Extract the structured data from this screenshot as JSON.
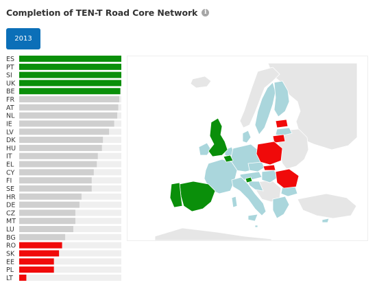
{
  "header": {
    "title": "Completion of TEN-T Road Core Network",
    "info_icon": "info-icon",
    "info_glyph": "i"
  },
  "year_selector": {
    "label": "2013"
  },
  "colors": {
    "complete": "#0a8f0a",
    "intermediate": "#cfcfcf",
    "low": "#f00a0a",
    "track": "#efefef",
    "map_intermediate": "#aad6dc",
    "map_nodata": "#e6e6e6"
  },
  "chart_data": {
    "type": "bar",
    "orientation": "horizontal",
    "categories": [
      "ES",
      "PT",
      "SI",
      "UK",
      "BE",
      "FR",
      "AT",
      "NL",
      "IE",
      "LV",
      "DK",
      "HU",
      "IT",
      "EL",
      "CY",
      "FI",
      "SE",
      "HR",
      "DE",
      "CZ",
      "MT",
      "LU",
      "BG",
      "RO",
      "SK",
      "EE",
      "PL",
      "LT"
    ],
    "values": [
      100,
      100,
      100,
      100,
      99,
      98,
      97,
      96,
      93,
      88,
      82,
      81,
      77,
      76,
      73,
      71,
      71,
      61,
      59,
      55,
      55,
      53,
      45,
      42,
      39,
      34,
      34,
      7
    ],
    "status": [
      "complete",
      "complete",
      "complete",
      "complete",
      "complete",
      "intermediate",
      "intermediate",
      "intermediate",
      "intermediate",
      "intermediate",
      "intermediate",
      "intermediate",
      "intermediate",
      "intermediate",
      "intermediate",
      "intermediate",
      "intermediate",
      "intermediate",
      "intermediate",
      "intermediate",
      "intermediate",
      "intermediate",
      "intermediate",
      "low",
      "low",
      "low",
      "low",
      "low"
    ],
    "xlim": [
      0,
      100
    ],
    "title": "",
    "xlabel": "",
    "ylabel": ""
  }
}
